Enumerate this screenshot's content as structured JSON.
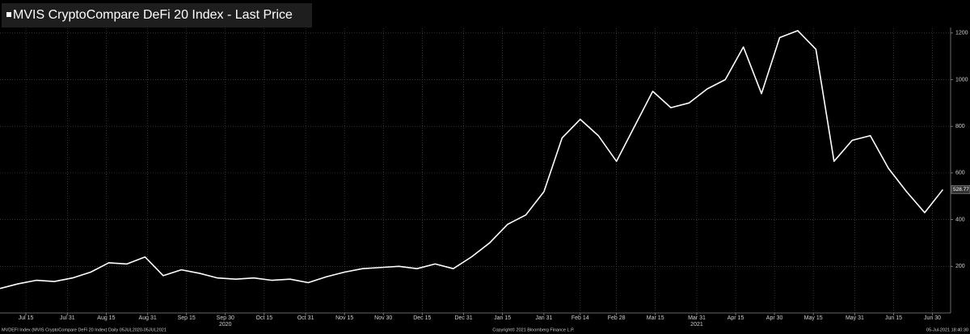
{
  "chart_data": {
    "type": "line",
    "title": "MVIS CryptoCompare DeFi 20 Index - Last Price",
    "footer_left": "MVDEFI Index (MVIS CryptoCompare DeFi 20 Index)  Daily 05JUL2020-05JUL2021",
    "footer_center": "Copyright© 2021 Bloomberg Finance L.P.",
    "footer_right": "05-Jul-2021 18:40:30",
    "x": [
      "2020-07-05",
      "2020-07-12",
      "2020-07-19",
      "2020-07-26",
      "2020-08-02",
      "2020-08-09",
      "2020-08-16",
      "2020-08-23",
      "2020-08-30",
      "2020-09-06",
      "2020-09-13",
      "2020-09-20",
      "2020-09-27",
      "2020-10-04",
      "2020-10-11",
      "2020-10-18",
      "2020-10-25",
      "2020-11-01",
      "2020-11-08",
      "2020-11-15",
      "2020-11-22",
      "2020-11-29",
      "2020-12-06",
      "2020-12-13",
      "2020-12-20",
      "2020-12-27",
      "2021-01-03",
      "2021-01-10",
      "2021-01-17",
      "2021-01-24",
      "2021-01-31",
      "2021-02-07",
      "2021-02-14",
      "2021-02-21",
      "2021-02-28",
      "2021-03-07",
      "2021-03-14",
      "2021-03-21",
      "2021-03-28",
      "2021-04-04",
      "2021-04-11",
      "2021-04-18",
      "2021-04-25",
      "2021-05-02",
      "2021-05-09",
      "2021-05-16",
      "2021-05-23",
      "2021-05-30",
      "2021-06-06",
      "2021-06-13",
      "2021-06-20",
      "2021-06-27",
      "2021-07-04"
    ],
    "series": [
      {
        "name": "MVIS CryptoCompare DeFi 20 Index",
        "color": "#ffffff",
        "values": [
          105,
          125,
          140,
          135,
          150,
          175,
          215,
          210,
          240,
          160,
          185,
          170,
          150,
          145,
          150,
          140,
          145,
          130,
          155,
          175,
          190,
          195,
          200,
          190,
          210,
          190,
          240,
          300,
          380,
          420,
          520,
          750,
          830,
          760,
          650,
          800,
          950,
          880,
          900,
          960,
          1000,
          1140,
          940,
          1180,
          1210,
          1130,
          650,
          740,
          760,
          620,
          520,
          430,
          528.77
        ]
      }
    ],
    "xlim": [
      "2020-07-05",
      "2021-07-07"
    ],
    "xticks": [
      {
        "value": "2020-07-15",
        "label": "Jul 15"
      },
      {
        "value": "2020-07-31",
        "label": "Jul 31"
      },
      {
        "value": "2020-08-15",
        "label": "Aug 15"
      },
      {
        "value": "2020-08-31",
        "label": "Aug 31"
      },
      {
        "value": "2020-09-15",
        "label": "Sep 15"
      },
      {
        "value": "2020-09-30",
        "label": "Sep 30"
      },
      {
        "value": "2020-10-15",
        "label": "Oct 15"
      },
      {
        "value": "2020-10-31",
        "label": "Oct 31"
      },
      {
        "value": "2020-11-15",
        "label": "Nov 15"
      },
      {
        "value": "2020-11-30",
        "label": "Nov 30"
      },
      {
        "value": "2020-12-15",
        "label": "Dec 15"
      },
      {
        "value": "2020-12-31",
        "label": "Dec 31"
      },
      {
        "value": "2021-01-15",
        "label": "Jan 15"
      },
      {
        "value": "2021-01-31",
        "label": "Jan 31"
      },
      {
        "value": "2021-02-14",
        "label": "Feb 14"
      },
      {
        "value": "2021-02-28",
        "label": "Feb 28"
      },
      {
        "value": "2021-03-15",
        "label": "Mar 15"
      },
      {
        "value": "2021-03-31",
        "label": "Mar 31"
      },
      {
        "value": "2021-04-15",
        "label": "Apr 15"
      },
      {
        "value": "2021-04-30",
        "label": "Apr 30"
      },
      {
        "value": "2021-05-15",
        "label": "May 15"
      },
      {
        "value": "2021-05-31",
        "label": "May 31"
      },
      {
        "value": "2021-06-15",
        "label": "Jun 15"
      },
      {
        "value": "2021-06-30",
        "label": "Jun 30"
      }
    ],
    "year_ticks": [
      {
        "value": "2020-09-30",
        "label": "2020"
      },
      {
        "value": "2021-03-31",
        "label": "2021"
      }
    ],
    "ylim": [
      0,
      1220
    ],
    "yticks": [
      200,
      400,
      600,
      800,
      1000,
      1200
    ],
    "grid": true
  }
}
